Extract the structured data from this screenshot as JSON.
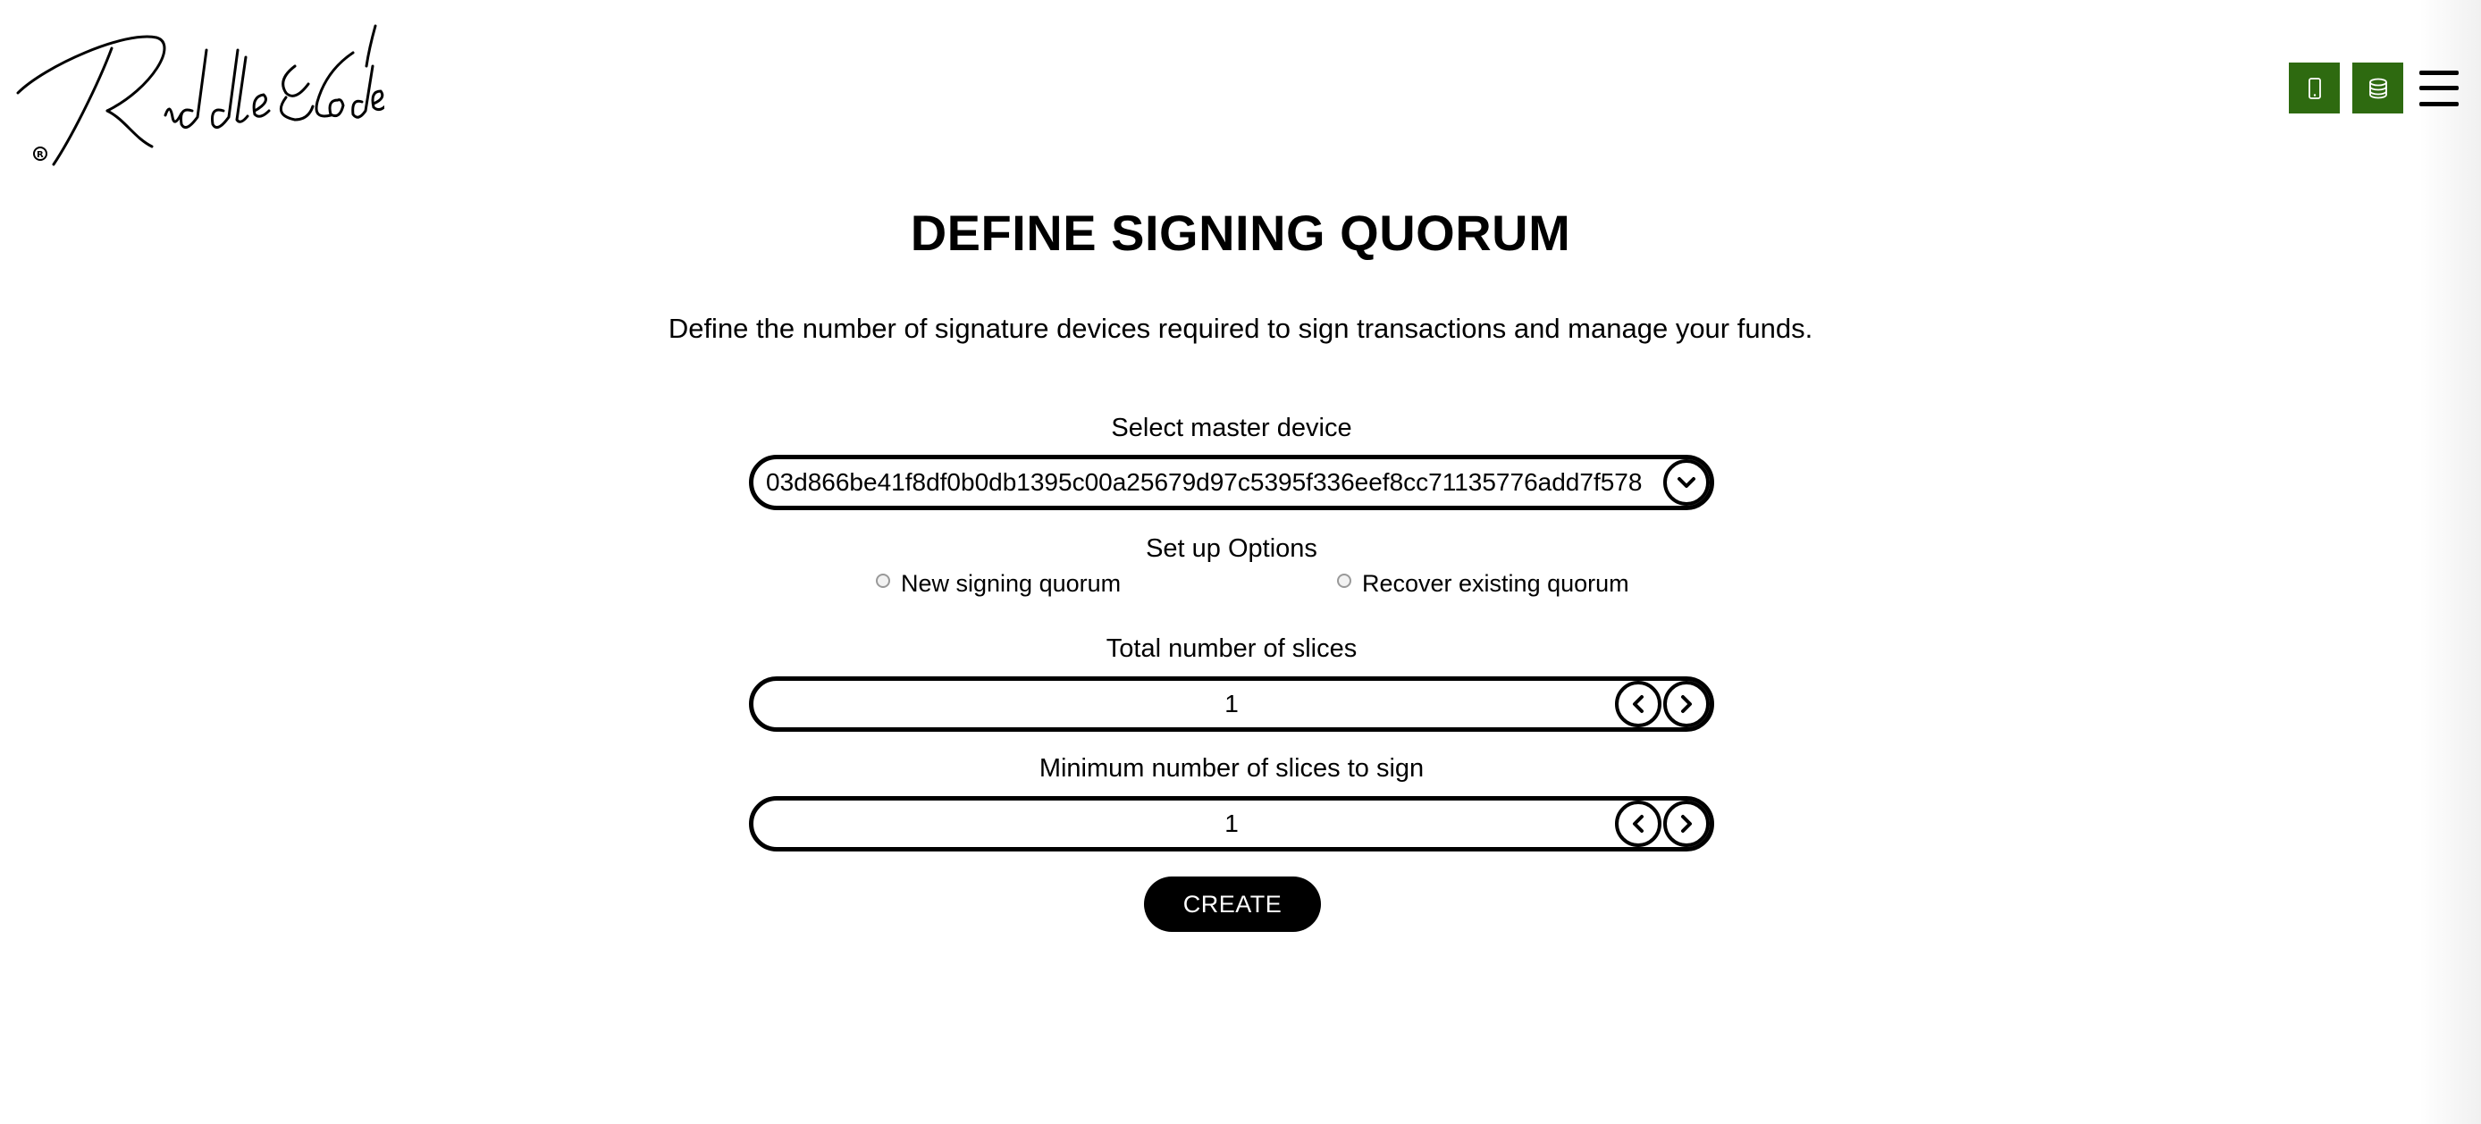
{
  "brand": {
    "logo_text": "Riddle&Code",
    "logo_icon": "signature-logo"
  },
  "header": {
    "device_button_icon": "mobile-phone-icon",
    "database_button_icon": "database-icon",
    "menu_icon": "hamburger-menu-icon",
    "accent_color": "#2e6a10"
  },
  "page": {
    "title": "DEFINE SIGNING QUORUM",
    "subtitle": "Define the number of signature devices required to sign transactions and manage your funds."
  },
  "master_device": {
    "label": "Select master device",
    "value": "03d866be41f8df0b0db1395c00a25679d97c5395f336eef8cc71135776add7f578",
    "dropdown_icon": "chevron-down-icon"
  },
  "setup_options": {
    "label": "Set up Options",
    "options": [
      {
        "label": "New signing quorum",
        "selected": false
      },
      {
        "label": "Recover existing quorum",
        "selected": false
      }
    ]
  },
  "total_slices": {
    "label": "Total number of slices",
    "value": "1"
  },
  "min_slices": {
    "label": "Minimum number of slices to sign",
    "value": "1"
  },
  "actions": {
    "create_label": "CREATE"
  }
}
